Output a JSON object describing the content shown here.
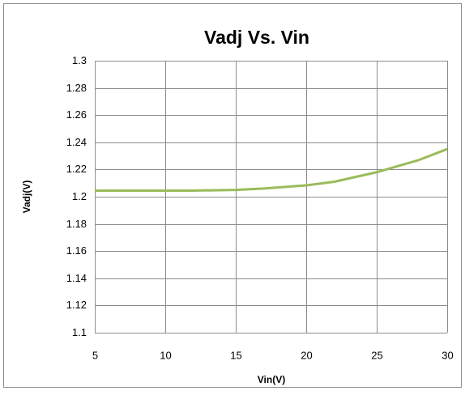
{
  "chart_data": {
    "type": "line",
    "title": "Vadj Vs. Vin",
    "xlabel": "Vin(V)",
    "ylabel": "Vadj(V)",
    "x": [
      5,
      8,
      10,
      12,
      15,
      17,
      20,
      22,
      25,
      27,
      28,
      30
    ],
    "series": [
      {
        "name": "Vadj",
        "color": "#9bbb59",
        "values": [
          1.2045,
          1.2045,
          1.2045,
          1.2045,
          1.205,
          1.206,
          1.2083,
          1.211,
          1.218,
          1.224,
          1.227,
          1.235
        ]
      }
    ],
    "xlim": [
      5,
      30
    ],
    "xticks": [
      5,
      10,
      15,
      20,
      25,
      30
    ],
    "ylim": [
      1.1,
      1.3
    ],
    "yticks": [
      1.1,
      1.12,
      1.14,
      1.16,
      1.18,
      1.2,
      1.22,
      1.24,
      1.26,
      1.28,
      1.3
    ],
    "grid": true
  }
}
